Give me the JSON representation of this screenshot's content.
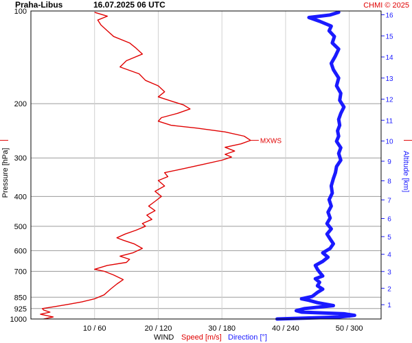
{
  "header": {
    "station": "Praha-Libus",
    "datetime": "16.07.2025 06 UTC",
    "credit": "CHMI © 2025"
  },
  "chart_data": {
    "type": "line",
    "ylabel": "Pressure [hPa]",
    "y2label": "Altitude [km]",
    "xlabel_prefix": "WIND",
    "xlabel_speed": "Speed [m/s]",
    "xlabel_direction": "Direction [°]",
    "y_scale": "log",
    "y_reversed": true,
    "ylim": [
      1000,
      100
    ],
    "pressure_ticks": [
      "100",
      "200",
      "300",
      "400",
      "500",
      "600",
      "700",
      "850",
      "925",
      "1000"
    ],
    "altitude_ticks": [
      "1",
      "2",
      "3",
      "4",
      "5",
      "6",
      "7",
      "8",
      "9",
      "10",
      "11",
      "12",
      "13",
      "14",
      "15",
      "16"
    ],
    "x_ticks": [
      "10 / 60",
      "20 / 120",
      "30 / 180",
      "40 / 240",
      "50 / 300"
    ],
    "speed_xlim": [
      0,
      55
    ],
    "direction_xlim": [
      0,
      330
    ],
    "annotation": {
      "label": "MXWS",
      "pressure": 263,
      "speed": 34.5
    },
    "series": [
      {
        "name": "Speed [m/s]",
        "color": "#e00000",
        "points": [
          [
            1000,
            2
          ],
          [
            985,
            3.5
          ],
          [
            965,
            1.5
          ],
          [
            950,
            3
          ],
          [
            935,
            2
          ],
          [
            925,
            1.8
          ],
          [
            910,
            4
          ],
          [
            895,
            6
          ],
          [
            880,
            8
          ],
          [
            860,
            10
          ],
          [
            835,
            11.5
          ],
          [
            800,
            12.5
          ],
          [
            770,
            13.5
          ],
          [
            745,
            14.5
          ],
          [
            720,
            13
          ],
          [
            700,
            11.5
          ],
          [
            690,
            10
          ],
          [
            670,
            12
          ],
          [
            655,
            15
          ],
          [
            640,
            15.5
          ],
          [
            625,
            14
          ],
          [
            610,
            16
          ],
          [
            590,
            17.5
          ],
          [
            570,
            16.2
          ],
          [
            555,
            14.5
          ],
          [
            545,
            13.5
          ],
          [
            530,
            14.8
          ],
          [
            515,
            16.5
          ],
          [
            500,
            18
          ],
          [
            490,
            17.5
          ],
          [
            475,
            19
          ],
          [
            460,
            18.2
          ],
          [
            445,
            19.5
          ],
          [
            430,
            18.5
          ],
          [
            415,
            19.5
          ],
          [
            400,
            20.5
          ],
          [
            385,
            19.5
          ],
          [
            370,
            21
          ],
          [
            355,
            20
          ],
          [
            345,
            21.5
          ],
          [
            335,
            21
          ],
          [
            325,
            24
          ],
          [
            315,
            27
          ],
          [
            305,
            30
          ],
          [
            298,
            31.5
          ],
          [
            292,
            30.5
          ],
          [
            285,
            32
          ],
          [
            277,
            30.5
          ],
          [
            270,
            33
          ],
          [
            263,
            34.5
          ],
          [
            255,
            33.5
          ],
          [
            247,
            30.5
          ],
          [
            240,
            26
          ],
          [
            235,
            22
          ],
          [
            228,
            20
          ],
          [
            222,
            20.5
          ],
          [
            215,
            23
          ],
          [
            208,
            25
          ],
          [
            202,
            24
          ],
          [
            196,
            22
          ],
          [
            190,
            20
          ],
          [
            183,
            21
          ],
          [
            175,
            20
          ],
          [
            168,
            18
          ],
          [
            160,
            17
          ],
          [
            152,
            14
          ],
          [
            145,
            15
          ],
          [
            138,
            17.5
          ],
          [
            132,
            16.5
          ],
          [
            127,
            15.5
          ],
          [
            121,
            13
          ],
          [
            116,
            12
          ],
          [
            111,
            11
          ],
          [
            107,
            10.5
          ],
          [
            104,
            12
          ],
          [
            101,
            10
          ]
        ]
      },
      {
        "name": "Direction [°]",
        "color": "#1a1aff",
        "points": [
          [
            1000,
            232
          ],
          [
            985,
            290
          ],
          [
            973,
            305
          ],
          [
            962,
            295
          ],
          [
            950,
            255
          ],
          [
            940,
            250
          ],
          [
            925,
            258
          ],
          [
            905,
            285
          ],
          [
            885,
            270
          ],
          [
            870,
            262
          ],
          [
            860,
            255
          ],
          [
            845,
            265
          ],
          [
            820,
            270
          ],
          [
            800,
            275
          ],
          [
            780,
            270
          ],
          [
            760,
            272
          ],
          [
            740,
            268
          ],
          [
            725,
            275
          ],
          [
            705,
            272
          ],
          [
            690,
            270
          ],
          [
            670,
            268
          ],
          [
            650,
            275
          ],
          [
            630,
            280
          ],
          [
            610,
            275
          ],
          [
            590,
            282
          ],
          [
            570,
            285
          ],
          [
            550,
            282
          ],
          [
            530,
            279
          ],
          [
            510,
            283
          ],
          [
            490,
            279
          ],
          [
            470,
            282
          ],
          [
            450,
            280
          ],
          [
            430,
            283
          ],
          [
            410,
            281
          ],
          [
            390,
            284
          ],
          [
            370,
            283
          ],
          [
            350,
            285
          ],
          [
            335,
            287
          ],
          [
            320,
            288
          ],
          [
            305,
            292
          ],
          [
            290,
            290
          ],
          [
            278,
            292
          ],
          [
            265,
            288
          ],
          [
            255,
            290
          ],
          [
            245,
            289
          ],
          [
            235,
            291
          ],
          [
            225,
            290
          ],
          [
            215,
            292
          ],
          [
            205,
            295
          ],
          [
            195,
            291
          ],
          [
            185,
            292
          ],
          [
            175,
            288
          ],
          [
            165,
            290
          ],
          [
            155,
            285
          ],
          [
            148,
            283
          ],
          [
            140,
            287
          ],
          [
            133,
            290
          ],
          [
            127,
            284
          ],
          [
            121,
            286
          ],
          [
            116,
            281
          ],
          [
            112,
            283
          ],
          [
            108,
            272
          ],
          [
            105,
            262
          ],
          [
            103,
            282
          ],
          [
            101,
            290
          ]
        ]
      }
    ]
  }
}
